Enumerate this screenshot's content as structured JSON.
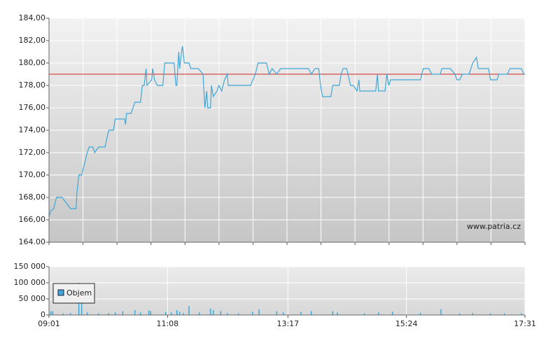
{
  "chart_data": [
    {
      "type": "line",
      "watermark": "www.patria.cz",
      "x": [
        "09:01",
        "09:03",
        "09:06",
        "09:09",
        "09:15",
        "09:24",
        "09:30",
        "09:31",
        "09:33",
        "09:36",
        "09:39",
        "09:42",
        "09:44",
        "09:48",
        "09:50",
        "09:54",
        "10:01",
        "10:05",
        "10:10",
        "10:12",
        "10:22",
        "10:23",
        "10:24",
        "10:29",
        "10:31",
        "10:33",
        "10:39",
        "10:41",
        "10:43",
        "10:45",
        "10:46",
        "10:51",
        "10:52",
        "10:54",
        "10:57",
        "11:03",
        "11:05",
        "11:15",
        "11:17",
        "11:18",
        "11:20",
        "11:21",
        "11:23",
        "11:24",
        "11:26",
        "11:31",
        "11:33",
        "11:41",
        "11:46",
        "11:48",
        "11:50",
        "11:51",
        "11:54",
        "11:55",
        "11:57",
        "12:01",
        "12:03",
        "12:06",
        "12:09",
        "12:12",
        "12:13",
        "12:24",
        "12:37",
        "12:42",
        "12:45",
        "12:54",
        "12:57",
        "13:00",
        "13:05",
        "13:09",
        "13:39",
        "13:42",
        "13:46",
        "13:50",
        "13:52",
        "13:54",
        "14:03",
        "14:05",
        "14:12",
        "14:14",
        "14:16",
        "14:20",
        "14:24",
        "14:27",
        "14:31",
        "14:33",
        "14:34",
        "14:51",
        "14:53",
        "14:54",
        "15:01",
        "15:03",
        "15:05",
        "15:07",
        "15:39",
        "15:42",
        "15:48",
        "15:51",
        "16:00",
        "16:02",
        "16:11",
        "16:16",
        "16:18",
        "16:21",
        "16:24",
        "16:31",
        "16:35",
        "16:39",
        "16:41",
        "16:52",
        "16:54",
        "17:01",
        "17:03",
        "17:12",
        "17:15",
        "17:27",
        "17:30",
        "17:31"
      ],
      "series": [
        {
          "color": "#3fa7d6",
          "values": [
            166.3,
            166.8,
            167.0,
            168.0,
            168.0,
            167.0,
            167.0,
            168.5,
            170.0,
            170.0,
            171.0,
            172.0,
            172.5,
            172.5,
            172.0,
            172.5,
            172.5,
            174.0,
            174.0,
            175.0,
            175.0,
            174.5,
            175.5,
            175.5,
            176.0,
            176.5,
            176.5,
            178.0,
            178.0,
            179.5,
            178.0,
            178.5,
            179.5,
            178.5,
            178.0,
            178.0,
            180.0,
            180.0,
            178.0,
            178.0,
            181.0,
            179.5,
            181.0,
            181.5,
            180.0,
            180.0,
            179.5,
            179.5,
            179.0,
            176.0,
            177.5,
            176.0,
            176.0,
            178.0,
            177.0,
            177.5,
            178.0,
            177.5,
            178.5,
            179.0,
            178.0,
            178.0,
            178.0,
            179.0,
            180.0,
            180.0,
            179.0,
            179.5,
            179.0,
            179.5,
            179.5,
            179.0,
            179.5,
            179.5,
            178.0,
            177.0,
            177.0,
            178.0,
            178.0,
            179.0,
            179.5,
            179.5,
            178.0,
            178.0,
            177.5,
            178.5,
            177.5,
            177.5,
            179.0,
            177.5,
            177.5,
            179.0,
            178.0,
            178.5,
            178.5,
            179.5,
            179.5,
            179.0,
            179.0,
            179.5,
            179.5,
            179.0,
            178.5,
            178.5,
            179.0,
            179.0,
            180.0,
            180.5,
            179.5,
            179.5,
            178.5,
            178.5,
            179.0,
            179.0,
            179.5,
            179.5,
            179.0,
            179.0
          ]
        }
      ],
      "reference_line": {
        "value": 179,
        "color": "#d42020"
      },
      "xlim": [
        "09:01",
        "17:31"
      ],
      "ylim": [
        164,
        184
      ],
      "yticks": [
        {
          "value": 164,
          "label": "164.00"
        },
        {
          "value": 166,
          "label": "166,00"
        },
        {
          "value": 168,
          "label": "168,00"
        },
        {
          "value": 170,
          "label": "170,00"
        },
        {
          "value": 172,
          "label": "172,00"
        },
        {
          "value": 174,
          "label": "174,00"
        },
        {
          "value": 176,
          "label": "176,00"
        },
        {
          "value": 178,
          "label": "178,00"
        },
        {
          "value": 180,
          "label": "180,00"
        },
        {
          "value": 182,
          "label": "182,00"
        },
        {
          "value": 184,
          "label": "184,00"
        }
      ],
      "grid": true
    },
    {
      "type": "bar",
      "x": [
        "09:03",
        "09:05",
        "09:16",
        "09:24",
        "09:33",
        "09:36",
        "09:42",
        "09:54",
        "10:05",
        "10:12",
        "10:20",
        "10:33",
        "10:39",
        "10:48",
        "10:50",
        "11:06",
        "11:12",
        "11:18",
        "11:21",
        "11:25",
        "11:31",
        "11:42",
        "11:54",
        "11:57",
        "12:05",
        "12:12",
        "12:24",
        "12:39",
        "12:46",
        "13:05",
        "13:12",
        "13:31",
        "13:42",
        "14:05",
        "14:10",
        "14:39",
        "14:54",
        "15:09",
        "15:39",
        "16:01",
        "16:21",
        "16:35",
        "16:54",
        "17:09",
        "17:27"
      ],
      "series": [
        {
          "name": "Objem",
          "color": "#3fa7d6",
          "values": [
            12000,
            12000,
            5000,
            6000,
            100000,
            40000,
            8000,
            5000,
            6000,
            8000,
            12000,
            15000,
            8000,
            14000,
            12000,
            10000,
            8000,
            15000,
            10000,
            6000,
            28000,
            8000,
            20000,
            15000,
            12000,
            6000,
            5000,
            10000,
            18000,
            12000,
            8000,
            10000,
            12000,
            12000,
            8000,
            5000,
            8000,
            10000,
            7000,
            18000,
            5000,
            6000,
            5000,
            5000,
            5000
          ]
        }
      ],
      "xlim": [
        "09:01",
        "17:31"
      ],
      "xticks": [
        "09:01",
        "11:08",
        "13:17",
        "15:24",
        "17:31"
      ],
      "ylim": [
        0,
        150000
      ],
      "yticks": [
        0,
        {
          "value": 50000,
          "label": "50 000"
        },
        {
          "value": 100000,
          "label": "100 000"
        },
        {
          "value": 150000,
          "label": "150 000"
        }
      ],
      "grid": true,
      "legend": "top-left"
    }
  ]
}
